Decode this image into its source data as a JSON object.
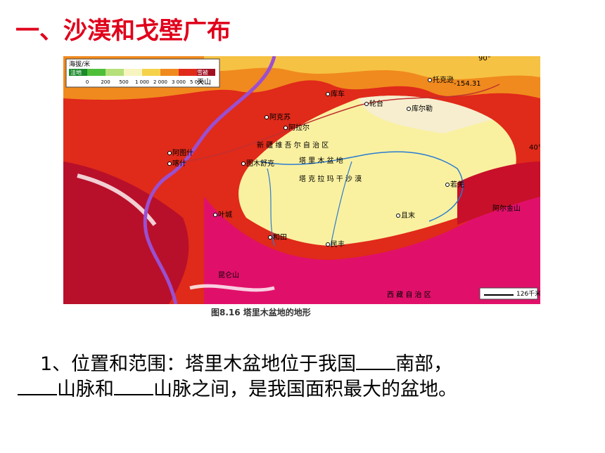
{
  "title": "一、沙漠和戈壁广布",
  "map": {
    "legend": {
      "title": "海拔/米",
      "low": "洼地",
      "high": "雪被",
      "levels": [
        "0",
        "200",
        "500",
        "1 000",
        "2 000",
        "3 000",
        "5 000"
      ]
    },
    "places": [
      "库车",
      "轮台",
      "阿克苏",
      "阿拉尔",
      "阿图什",
      "喀什",
      "图木舒克",
      "叶城",
      "和田",
      "民丰",
      "且末",
      "若羌",
      "库尔勒",
      "托克逊",
      "塔 里 木 盆 地",
      "塔 克 拉 玛 干 沙 漠",
      "新 疆 维 吾 尔 自 治 区",
      "天山",
      "昆仑山",
      "阿尔金山",
      "西 藏 自 治 区",
      "-154.31",
      "40°",
      "90°"
    ],
    "scale": "126千米",
    "caption": "图8.16 塔里木盆地的地形"
  },
  "body": {
    "line1": [
      "1、位置和范围：塔里木盆地位于我国",
      "南部，"
    ],
    "line2": [
      "山脉和",
      "山脉之间，是我国面积最大的盆地。"
    ]
  }
}
